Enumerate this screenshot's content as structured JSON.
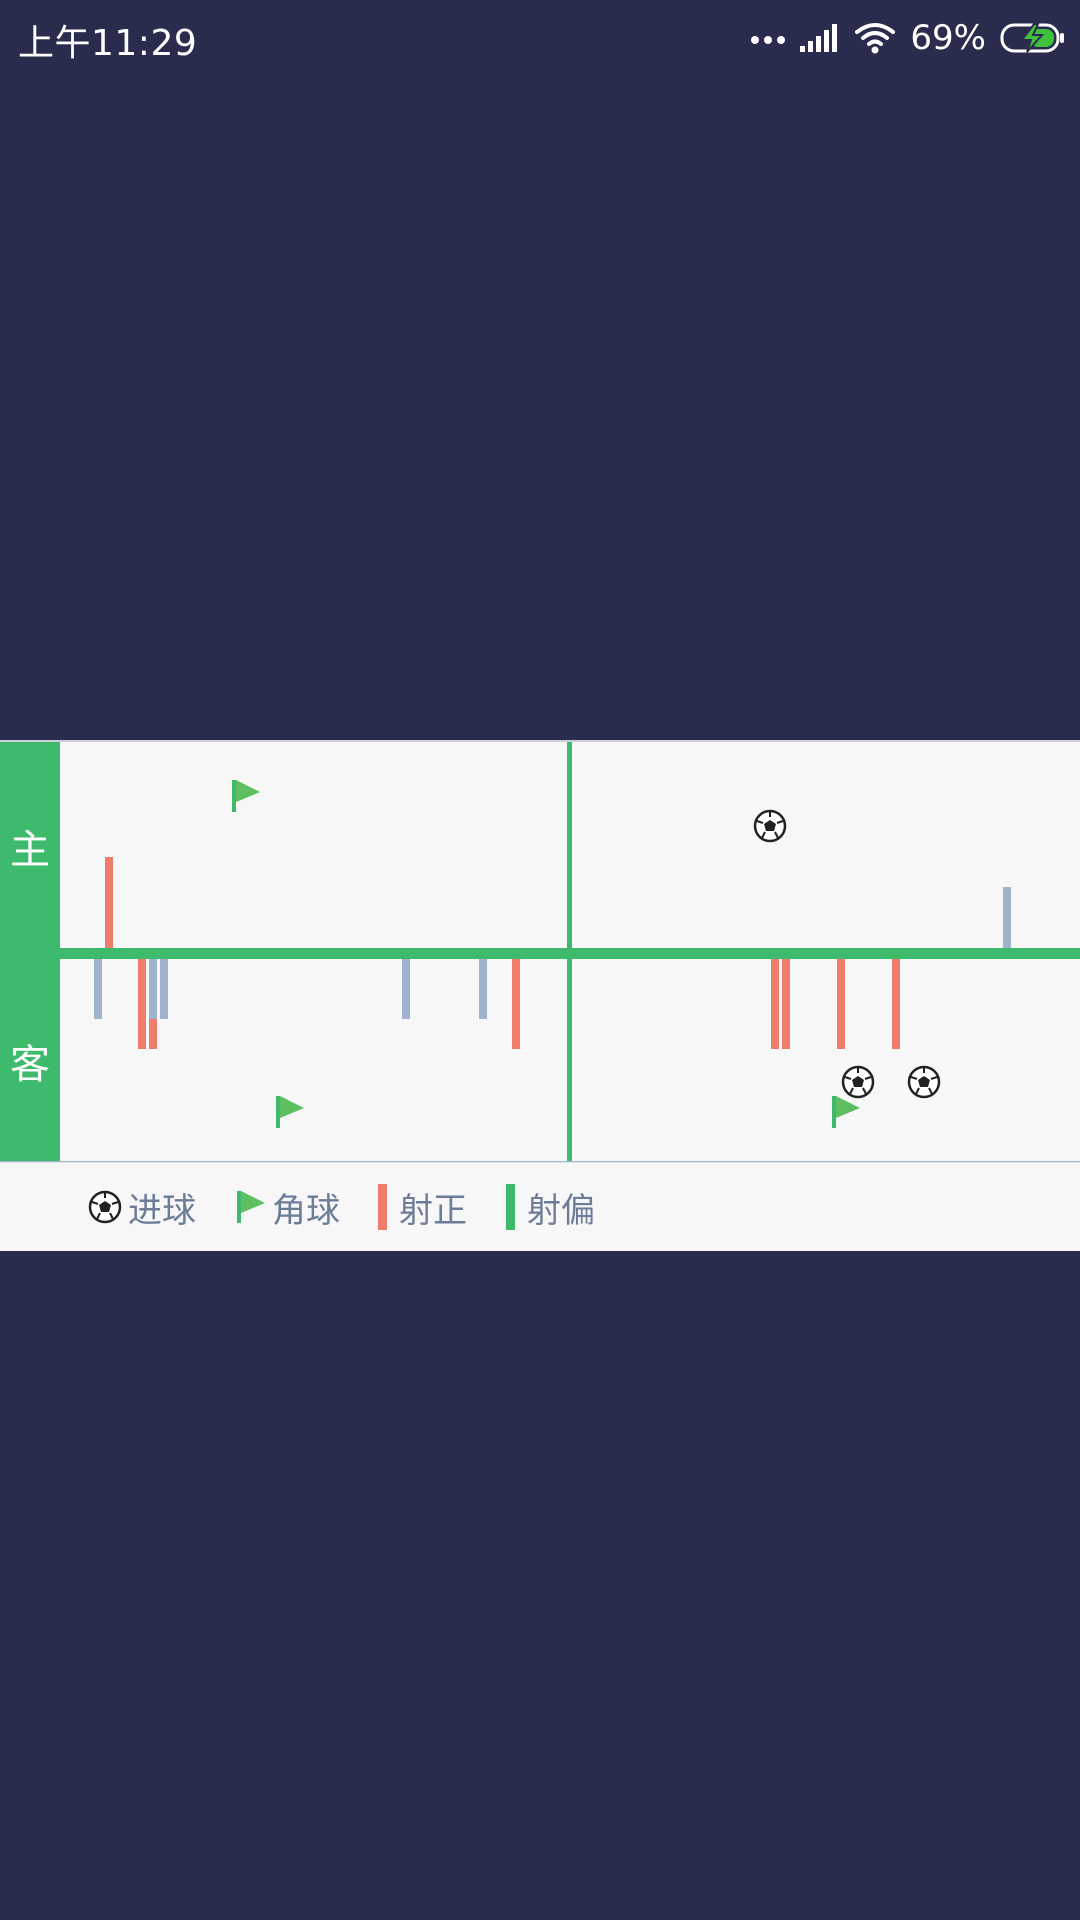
{
  "status_bar": {
    "time": "上午11:29",
    "battery_percent": "69%",
    "icons": [
      "more-dots-icon",
      "signal-icon",
      "wifi-icon",
      "battery-charging-icon"
    ]
  },
  "timeline": {
    "home_label": "主",
    "away_label": "客",
    "colors": {
      "background": "#f7f7f7",
      "green": "#3dba6b",
      "shot_on": "#f07c6c",
      "shot_other": "#9fb3cf"
    },
    "home_events": {
      "corners": [
        1
      ],
      "goals": [
        1
      ],
      "shots_on_target": [
        1
      ],
      "shots_other": [
        1
      ]
    },
    "away_events": {
      "corners": [
        2
      ],
      "goals": [
        2
      ],
      "shots_on_target": [
        7
      ],
      "shots_other": [
        5
      ]
    }
  },
  "legend": {
    "goal": "进球",
    "corner": "角球",
    "shot_on": "射正",
    "shot_off": "射偏"
  }
}
